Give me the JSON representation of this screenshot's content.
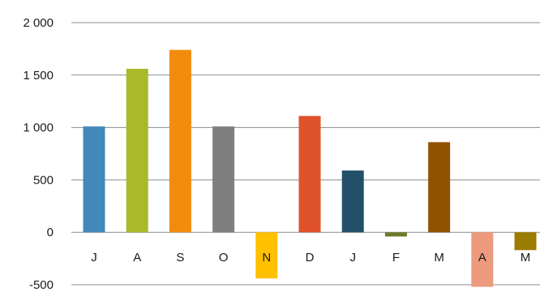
{
  "chart_data": {
    "type": "bar",
    "title": "",
    "xlabel": "",
    "ylabel": "",
    "ylim": [
      -500,
      2000
    ],
    "y_ticks": [
      2000,
      1500,
      1000,
      500,
      0,
      -500
    ],
    "y_tick_labels": [
      "2 000",
      "1 500",
      "1 000",
      "500",
      "0",
      "-500"
    ],
    "grid": "horizontal",
    "categories": [
      "J",
      "A",
      "S",
      "O",
      "N",
      "D",
      "J",
      "F",
      "M",
      "A",
      "M"
    ],
    "values": [
      1010,
      1560,
      1740,
      1010,
      -440,
      1110,
      590,
      -40,
      860,
      -520,
      -170
    ],
    "colors": [
      "#4189b8",
      "#a8b92a",
      "#f28c0f",
      "#7f7f7f",
      "#ffc000",
      "#e0522a",
      "#235068",
      "#6b7a2a",
      "#8f5300",
      "#ee9a7e",
      "#9c7c00"
    ]
  }
}
